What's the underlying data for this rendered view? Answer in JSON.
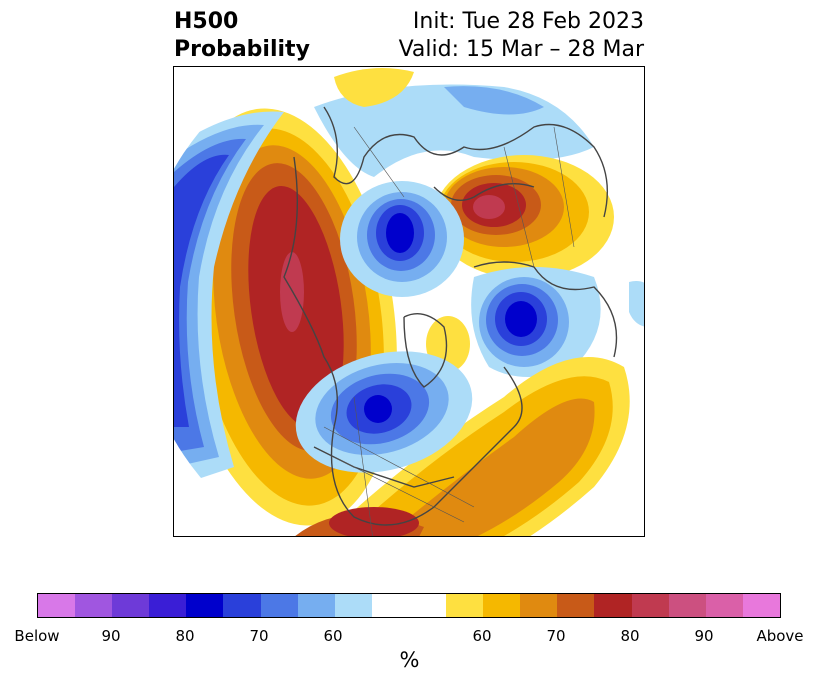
{
  "header": {
    "title_line1": "H500",
    "title_line2": "Probability",
    "init": "Init: Tue 28 Feb 2023",
    "valid": "Valid: 15 Mar – 28 Mar"
  },
  "colorbar": {
    "below_colors": [
      "#d878e8",
      "#a056e0",
      "#6e3ad8",
      "#3a1ed6",
      "#0000cc",
      "#2a40da",
      "#4c78e6",
      "#76aef0",
      "#acdcf8"
    ],
    "neutral_color": "#ffffff",
    "above_colors": [
      "#fee040",
      "#f5b800",
      "#e08a10",
      "#c85a18",
      "#b02424",
      "#c03a50",
      "#cc5080",
      "#da60a8",
      "#e878dc"
    ],
    "tick_labels": [
      "Below",
      "90",
      "80",
      "70",
      "60",
      "60",
      "70",
      "80",
      "90",
      "Above"
    ],
    "unit": "%"
  },
  "map": {
    "projection": "north-polar-stereographic",
    "coastline_color": "#444444"
  }
}
